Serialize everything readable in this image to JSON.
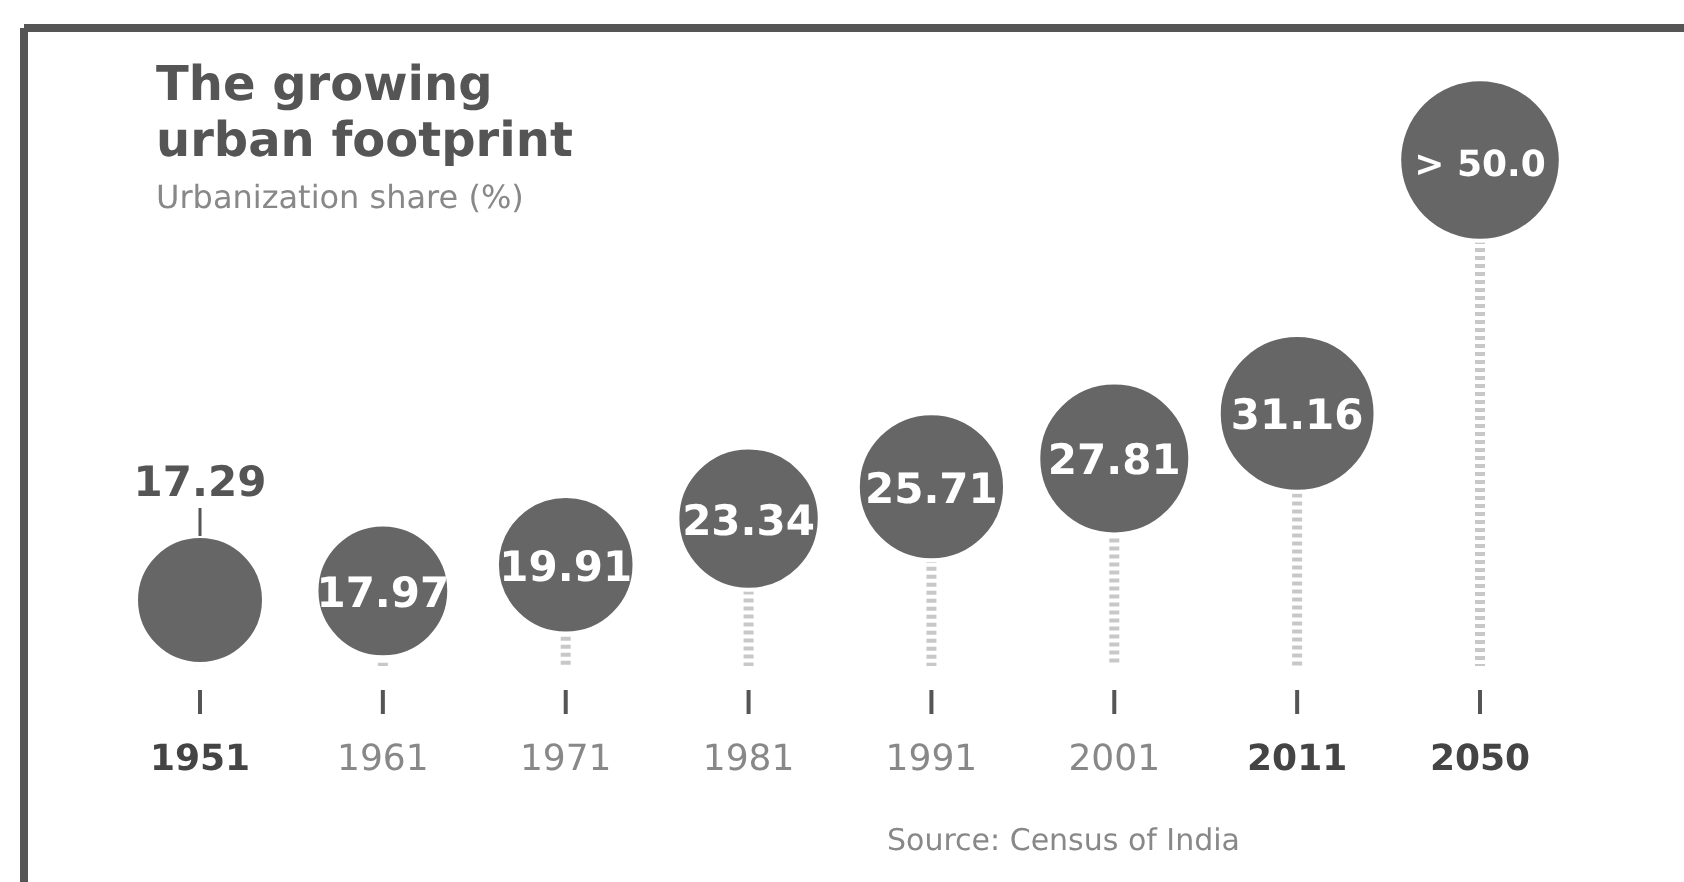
{
  "chart_data": {
    "type": "lollipop",
    "title": "The growing urban footprint",
    "subtitle": "Urbanization share (%)",
    "categories": [
      "1951",
      "1961",
      "1971",
      "1981",
      "1991",
      "2001",
      "2011",
      "2050"
    ],
    "values": [
      17.29,
      17.97,
      19.91,
      23.34,
      25.71,
      27.81,
      31.16,
      50.0
    ],
    "value_labels": [
      "17.29",
      "17.97",
      "19.91",
      "23.34",
      "25.71",
      "27.81",
      "31.16",
      "> 50.0"
    ],
    "color": "#666666",
    "annotations": [
      "Source: Census of India"
    ]
  }
}
